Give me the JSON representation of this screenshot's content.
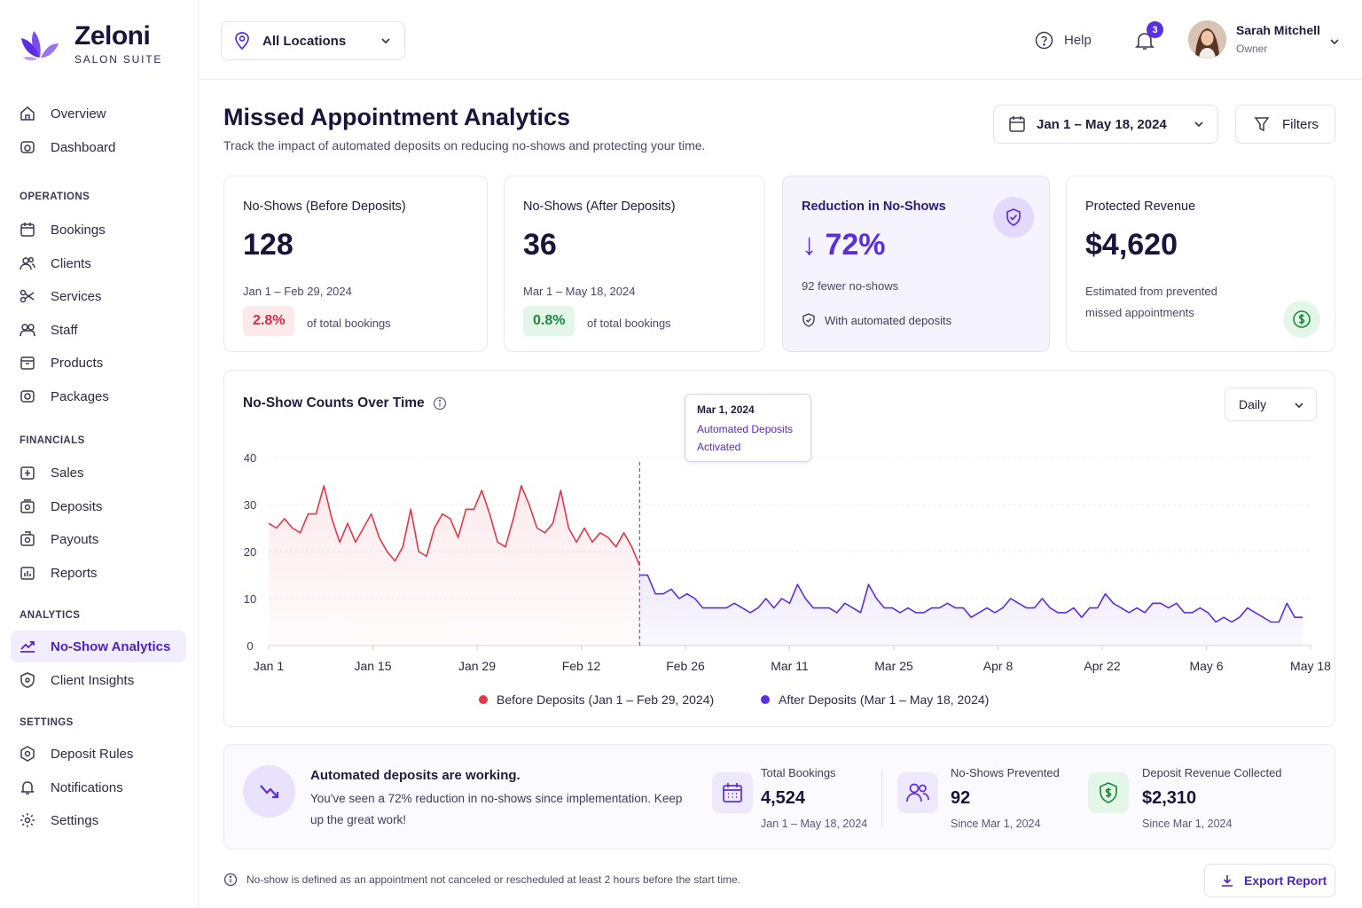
{
  "brand": {
    "name": "Zeloni",
    "subtitle": "SALON SUITE"
  },
  "nav": {
    "top": [
      {
        "label": "Overview",
        "icon": "home-icon"
      },
      {
        "label": "Dashboard",
        "icon": "gauge-icon"
      }
    ],
    "sections": [
      {
        "title": "OPERATIONS",
        "items": [
          {
            "label": "Bookings",
            "icon": "calendar-icon"
          },
          {
            "label": "Clients",
            "icon": "users-icon"
          },
          {
            "label": "Services",
            "icon": "scissors-icon"
          },
          {
            "label": "Staff",
            "icon": "staff-icon"
          },
          {
            "label": "Products",
            "icon": "box-icon"
          },
          {
            "label": "Packages",
            "icon": "package-icon"
          }
        ]
      },
      {
        "title": "FINANCIALS",
        "items": [
          {
            "label": "Sales",
            "icon": "sales-icon"
          },
          {
            "label": "Deposits",
            "icon": "wallet-icon"
          },
          {
            "label": "Payouts",
            "icon": "payout-icon"
          },
          {
            "label": "Reports",
            "icon": "report-icon"
          }
        ]
      },
      {
        "title": "ANALYTICS",
        "items": [
          {
            "label": "No-Show Analytics",
            "icon": "trend-icon",
            "active": true
          },
          {
            "label": "Client Insights",
            "icon": "insight-icon"
          }
        ]
      },
      {
        "title": "SETTINGS",
        "items": [
          {
            "label": "Deposit Rules",
            "icon": "rules-icon"
          },
          {
            "label": "Notifications",
            "icon": "bell-icon"
          },
          {
            "label": "Settings",
            "icon": "gear-icon"
          }
        ]
      }
    ]
  },
  "header": {
    "location": "All Locations",
    "help": "Help",
    "notifications_count": "3",
    "user": {
      "name": "Sarah Mitchell",
      "role": "Owner"
    }
  },
  "page": {
    "title": "Missed Appointment Analytics",
    "subtitle": "Track the impact of automated deposits on reducing no-shows and protecting your time.",
    "date_range": "Jan 1 – May 18, 2024",
    "filters": "Filters"
  },
  "cards": {
    "before": {
      "label": "No-Shows (Before Deposits)",
      "value": "128",
      "range": "Jan 1 – Feb 29, 2024",
      "pct": "2.8%",
      "note": "of total bookings"
    },
    "after": {
      "label": "No-Shows (After Deposits)",
      "value": "36",
      "range": "Mar 1 – May 18, 2024",
      "pct": "0.8%",
      "note": "of total bookings"
    },
    "reduction": {
      "label": "Reduction in No-Shows",
      "value": "↓ 72%",
      "sub": "92 fewer no-shows",
      "note": "With automated deposits"
    },
    "revenue": {
      "label": "Protected Revenue",
      "value": "$4,620",
      "note": "Estimated from prevented missed appointments"
    }
  },
  "chart": {
    "title": "No-Show Counts Over Time",
    "interval": "Daily",
    "tooltip": {
      "date": "Mar 1, 2024",
      "line1": "Automated Deposits",
      "line2": "Activated"
    },
    "legend": {
      "before": "Before Deposits (Jan 1 – Feb 29, 2024)",
      "after": "After Deposits (Mar 1 – May 18, 2024)"
    },
    "colors": {
      "before": "#e5364a",
      "after": "#5b2ee0"
    }
  },
  "chart_data": {
    "type": "line",
    "title": "No-Show Counts Over Time",
    "xlabel": "",
    "ylabel": "",
    "ylim": [
      0,
      40
    ],
    "yticks": [
      0,
      10,
      20,
      30,
      40
    ],
    "xticks": [
      "Jan 1",
      "Jan 15",
      "Jan 29",
      "Feb 12",
      "Feb 26",
      "Mar 11",
      "Mar 25",
      "Apr 8",
      "Apr 22",
      "May 6",
      "May 18"
    ],
    "x_start": "Jan 1",
    "x_end": "May 18",
    "marker": {
      "x": "Mar 1",
      "label": "Mar 1, 2024"
    },
    "series": [
      {
        "name": "Before Deposits (Jan 1 – Feb 29, 2024)",
        "values": [
          26,
          25,
          27,
          25,
          24,
          28,
          28,
          34,
          27,
          22,
          26,
          22,
          25,
          28,
          23,
          20,
          18,
          21,
          29,
          20,
          19,
          25,
          28,
          27,
          23,
          29,
          29,
          33,
          28,
          22,
          21,
          27,
          34,
          30,
          25,
          24,
          26,
          33,
          25,
          22,
          25,
          22,
          24,
          23,
          21,
          24,
          21,
          17
        ]
      },
      {
        "name": "After Deposits (Mar 1 – May 18, 2024)",
        "values": [
          15,
          15,
          11,
          11,
          12,
          10,
          11,
          10,
          8,
          8,
          8,
          8,
          9,
          8,
          7,
          8,
          10,
          8,
          10,
          9,
          13,
          10,
          8,
          8,
          8,
          7,
          9,
          8,
          7,
          13,
          10,
          8,
          8,
          7,
          8,
          7,
          7,
          8,
          8,
          9,
          8,
          8,
          6,
          7,
          8,
          7,
          8,
          10,
          9,
          8,
          8,
          10,
          8,
          7,
          7,
          8,
          6,
          8,
          8,
          11,
          9,
          8,
          7,
          8,
          7,
          9,
          9,
          8,
          9,
          7,
          7,
          8,
          7,
          5,
          6,
          5,
          6,
          8,
          7,
          6,
          5,
          5,
          9,
          6,
          6
        ]
      }
    ]
  },
  "summary": {
    "title": "Automated deposits are working.",
    "text": "You've seen a 72% reduction in no-shows since implementation. Keep up the great work!",
    "stats": [
      {
        "label": "Total Bookings",
        "value": "4,524",
        "sub": "Jan 1 – May 18, 2024"
      },
      {
        "label": "No-Shows Prevented",
        "value": "92",
        "sub": "Since Mar 1, 2024"
      },
      {
        "label": "Deposit Revenue Collected",
        "value": "$2,310",
        "sub": "Since Mar 1, 2024"
      }
    ]
  },
  "footer": {
    "note": "No-show is defined as an appointment not canceled or rescheduled at least 2 hours before the start time.",
    "export": "Export Report"
  }
}
